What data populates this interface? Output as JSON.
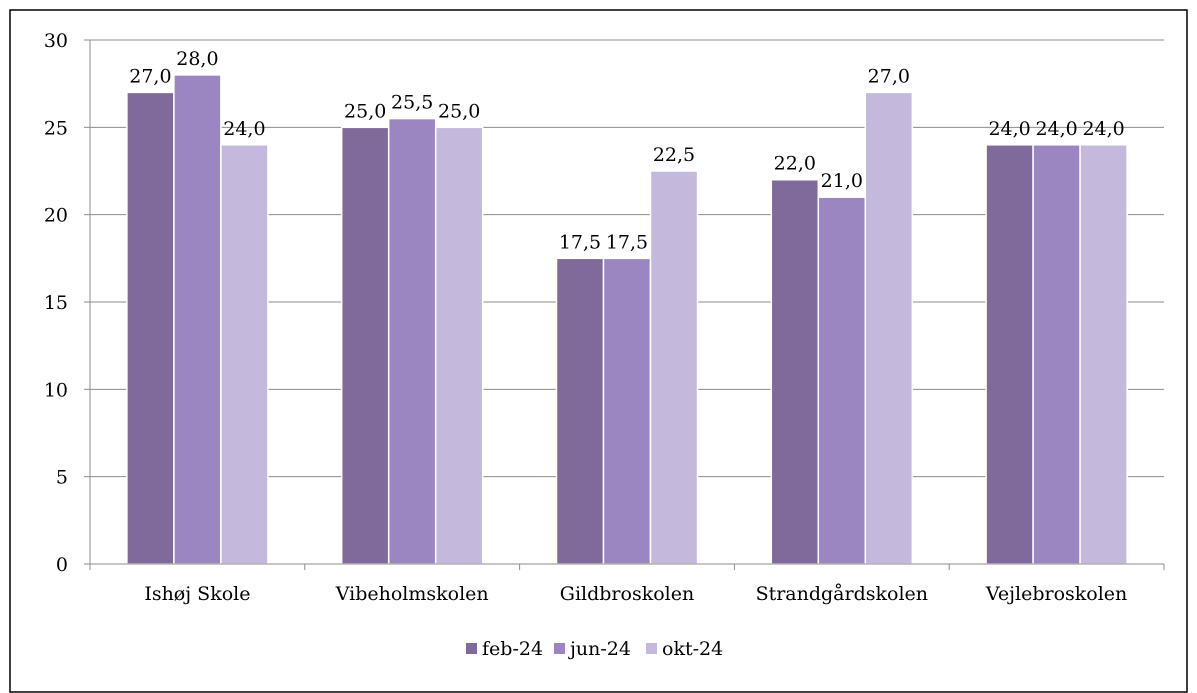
{
  "figure_caption": "",
  "chart_data": {
    "type": "bar",
    "title": "",
    "xlabel": "",
    "ylabel": "",
    "ylim": [
      0,
      30
    ],
    "yticks": [
      0,
      5,
      10,
      15,
      20,
      25,
      30
    ],
    "y_tick_labels": [
      "0",
      "5",
      "10",
      "15",
      "20",
      "25",
      "30"
    ],
    "grid": true,
    "legend_position": "bottom",
    "categories": [
      "Ishøj Skole",
      "Vibeholmskolen",
      "Gildbroskolen",
      "Strandgårdskolen",
      "Vejlebroskolen"
    ],
    "series": [
      {
        "name": "feb-24",
        "color": "#80699b",
        "values": [
          27.0,
          25.0,
          17.5,
          22.0,
          24.0
        ],
        "labels": [
          "27,0",
          "25,0",
          "17,5",
          "22,0",
          "24,0"
        ]
      },
      {
        "name": "jun-24",
        "color": "#9b86c1",
        "values": [
          28.0,
          25.5,
          17.5,
          21.0,
          24.0
        ],
        "labels": [
          "28,0",
          "25,5",
          "17,5",
          "21,0",
          "24,0"
        ]
      },
      {
        "name": "okt-24",
        "color": "#c4b8dc",
        "values": [
          24.0,
          25.0,
          22.5,
          27.0,
          24.0
        ],
        "labels": [
          "24,0",
          "25,0",
          "22,5",
          "27,0",
          "24,0"
        ]
      }
    ]
  }
}
